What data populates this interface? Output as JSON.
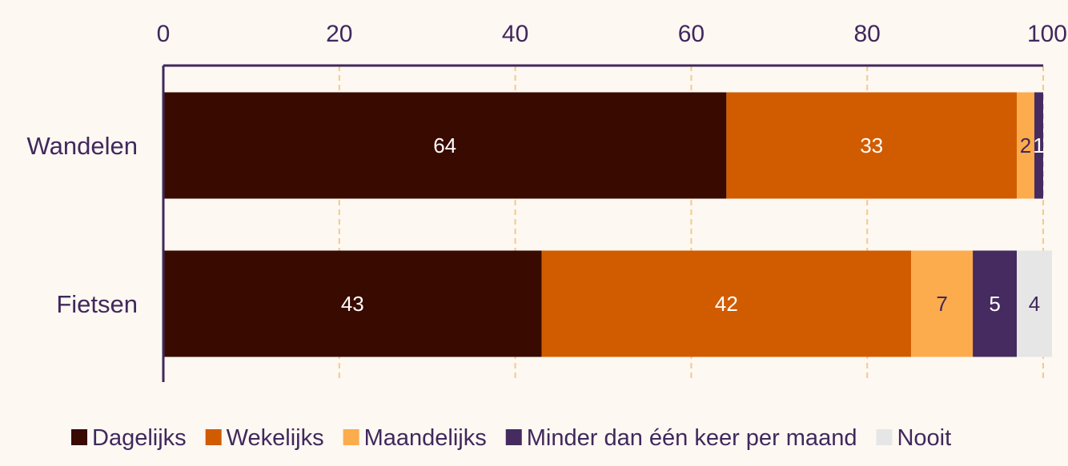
{
  "chart_data": {
    "type": "bar",
    "orientation": "horizontal",
    "stacked": true,
    "categories": [
      "Wandelen",
      "Fietsen"
    ],
    "series": [
      {
        "name": "Dagelijks",
        "color": "#380a00",
        "values": [
          64,
          43
        ],
        "labels": [
          "64",
          "43"
        ],
        "label_color": "#ffffff"
      },
      {
        "name": "Wekelijks",
        "color": "#d15c00",
        "values": [
          33,
          42
        ],
        "labels": [
          "33",
          "42"
        ],
        "label_color": "#ffffff"
      },
      {
        "name": "Maandelijks",
        "color": "#fcab4d",
        "values": [
          2,
          7
        ],
        "labels": [
          "2",
          "7"
        ],
        "label_color": "#40285c"
      },
      {
        "name": "Minder dan één keer per maand",
        "color": "#452b5f",
        "values": [
          1,
          5
        ],
        "labels": [
          "1",
          "5"
        ],
        "label_color": "#ffffff"
      },
      {
        "name": "Nooit",
        "color": "#e6e6e6",
        "values": [
          0,
          4
        ],
        "labels": [
          "",
          "4"
        ],
        "label_color": "#40285c"
      }
    ],
    "x_ticks": [
      "0",
      "20",
      "40",
      "60",
      "80",
      "100"
    ],
    "xlim": [
      0,
      100
    ],
    "axis_position": "top",
    "grid": "vertical dashed",
    "grid_color": "#f5c98a",
    "axis_color": "#40285c",
    "legend_position": "bottom"
  }
}
